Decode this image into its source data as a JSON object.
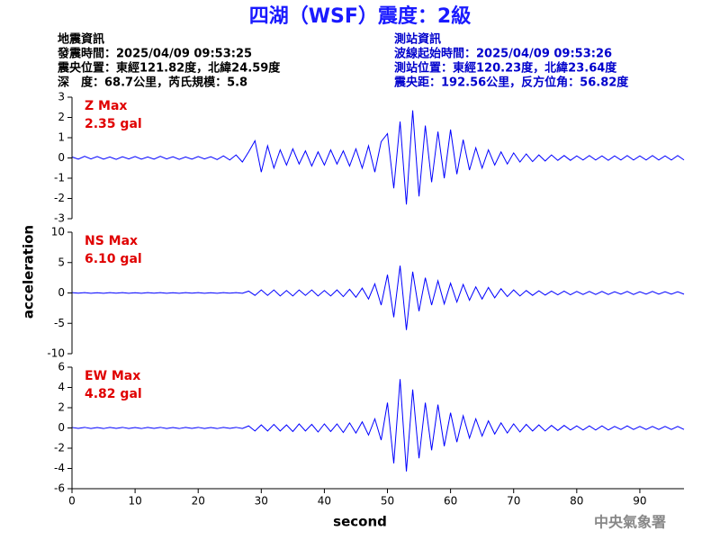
{
  "header": {
    "title": "四湖（WSF）震度：2級",
    "left": [
      "地震資訊",
      "發震時間：2025/04/09 09:53:25",
      "震央位置：東經121.82度，北緯24.59度",
      "深　度：68.7公里，芮氏規模：5.8"
    ],
    "right": [
      "測站資訊",
      "波線起始時間：2025/04/09 09:53:26",
      "測站位置：東經120.23度，北緯23.64度",
      "震央距：192.56公里，反方位角：56.82度"
    ],
    "footer": "中央氣象署"
  },
  "chart_data": {
    "type": "line",
    "xlabel": "second",
    "ylabel": "acceleration",
    "xlim": [
      0,
      97
    ],
    "xticks": [
      0,
      10,
      20,
      30,
      40,
      50,
      60,
      70,
      80,
      90
    ],
    "x": [
      0,
      1,
      2,
      3,
      4,
      5,
      6,
      7,
      8,
      9,
      10,
      11,
      12,
      13,
      14,
      15,
      16,
      17,
      18,
      19,
      20,
      21,
      22,
      23,
      24,
      25,
      26,
      27,
      28,
      29,
      30,
      31,
      32,
      33,
      34,
      35,
      36,
      37,
      38,
      39,
      40,
      41,
      42,
      43,
      44,
      45,
      46,
      47,
      48,
      49,
      50,
      51,
      52,
      53,
      54,
      55,
      56,
      57,
      58,
      59,
      60,
      61,
      62,
      63,
      64,
      65,
      66,
      67,
      68,
      69,
      70,
      71,
      72,
      73,
      74,
      75,
      76,
      77,
      78,
      79,
      80,
      81,
      82,
      83,
      84,
      85,
      86,
      87,
      88,
      89,
      90,
      91,
      92,
      93,
      94,
      95,
      96,
      97
    ],
    "panels": [
      {
        "annotation": [
          "Z Max",
          "2.35 gal"
        ],
        "ylim": [
          -3,
          3
        ],
        "yticks": [
          -3,
          -2,
          -1,
          0,
          1,
          2,
          3
        ],
        "series": [
          {
            "color": "#0000ff",
            "values": [
              0.05,
              -0.06,
              0.08,
              -0.05,
              0.07,
              -0.06,
              0.05,
              -0.07,
              0.06,
              -0.05,
              0.07,
              -0.06,
              0.05,
              -0.06,
              0.08,
              -0.05,
              0.06,
              -0.07,
              0.05,
              -0.06,
              0.07,
              -0.05,
              0.06,
              -0.08,
              0.1,
              -0.1,
              0.15,
              -0.2,
              0.3,
              0.85,
              -0.7,
              0.6,
              -0.5,
              0.4,
              -0.35,
              0.45,
              -0.3,
              0.35,
              -0.4,
              0.3,
              -0.35,
              0.4,
              -0.3,
              0.35,
              -0.4,
              0.45,
              -0.5,
              0.6,
              -0.7,
              0.8,
              1.2,
              -1.5,
              1.8,
              -2.3,
              2.35,
              -1.9,
              1.6,
              -1.2,
              1.3,
              -1.0,
              1.4,
              -0.8,
              0.9,
              -0.6,
              0.5,
              -0.5,
              0.4,
              -0.35,
              0.3,
              -0.3,
              0.25,
              -0.2,
              0.2,
              -0.18,
              0.15,
              -0.15,
              0.15,
              -0.12,
              0.12,
              -0.12,
              0.1,
              -0.1,
              0.12,
              -0.1,
              0.1,
              -0.12,
              0.1,
              -0.1,
              0.12,
              -0.1,
              0.1,
              -0.1,
              0.12,
              -0.1,
              0.1,
              -0.1,
              0.12,
              -0.1
            ]
          }
        ]
      },
      {
        "annotation": [
          "NS Max",
          "6.10 gal"
        ],
        "ylim": [
          -10,
          10
        ],
        "yticks": [
          -10,
          -5,
          0,
          5,
          10
        ],
        "series": [
          {
            "color": "#0000ff",
            "values": [
              0.05,
              -0.04,
              0.06,
              -0.05,
              0.04,
              -0.06,
              0.05,
              -0.04,
              0.06,
              -0.05,
              0.04,
              -0.06,
              0.05,
              -0.04,
              0.06,
              -0.05,
              0.04,
              -0.06,
              0.05,
              -0.04,
              0.06,
              -0.05,
              0.04,
              -0.06,
              0.05,
              -0.04,
              0.06,
              -0.05,
              0.3,
              -0.4,
              0.5,
              -0.4,
              0.5,
              -0.5,
              0.4,
              -0.5,
              0.5,
              -0.4,
              0.5,
              -0.5,
              0.4,
              -0.5,
              0.5,
              -0.6,
              0.6,
              -0.7,
              0.8,
              -1.0,
              1.5,
              -2.0,
              3.0,
              -4.0,
              4.5,
              -6.1,
              3.5,
              -3.0,
              2.5,
              -2.0,
              2.0,
              -1.8,
              1.6,
              -1.5,
              1.4,
              -1.2,
              1.0,
              -1.0,
              0.9,
              -0.8,
              0.7,
              -0.6,
              0.5,
              -0.5,
              0.4,
              -0.4,
              0.35,
              -0.35,
              0.3,
              -0.3,
              0.3,
              -0.3,
              0.25,
              -0.25,
              0.25,
              -0.25,
              0.25,
              -0.25,
              0.2,
              -0.2,
              0.25,
              -0.25,
              0.2,
              -0.2,
              0.25,
              -0.2,
              0.2,
              -0.2,
              0.2,
              -0.2
            ]
          }
        ]
      },
      {
        "annotation": [
          "EW Max",
          "4.82 gal"
        ],
        "ylim": [
          -6,
          6
        ],
        "yticks": [
          -6,
          -4,
          -2,
          0,
          2,
          4,
          6
        ],
        "series": [
          {
            "color": "#0000ff",
            "values": [
              0.05,
              -0.04,
              0.06,
              -0.05,
              0.04,
              -0.06,
              0.05,
              -0.04,
              0.06,
              -0.05,
              0.04,
              -0.06,
              0.05,
              -0.04,
              0.06,
              -0.05,
              0.04,
              -0.06,
              0.05,
              -0.04,
              0.06,
              -0.05,
              0.04,
              -0.06,
              0.05,
              -0.04,
              0.06,
              -0.05,
              0.2,
              -0.3,
              0.3,
              -0.3,
              0.35,
              -0.3,
              0.3,
              -0.35,
              0.4,
              -0.3,
              0.35,
              -0.4,
              0.4,
              -0.35,
              0.4,
              -0.45,
              0.5,
              -0.5,
              0.6,
              -0.7,
              0.9,
              -1.2,
              2.5,
              -3.5,
              4.82,
              -4.3,
              3.8,
              -3.0,
              2.5,
              -2.2,
              2.3,
              -1.8,
              1.5,
              -1.4,
              1.2,
              -1.0,
              0.9,
              -0.8,
              0.7,
              -0.6,
              0.5,
              -0.5,
              0.4,
              -0.4,
              0.35,
              -0.3,
              0.3,
              -0.3,
              0.25,
              -0.25,
              0.25,
              -0.2,
              0.2,
              -0.2,
              0.2,
              -0.2,
              0.2,
              -0.2,
              0.15,
              -0.15,
              0.2,
              -0.15,
              0.15,
              -0.15,
              0.15,
              -0.15,
              0.15,
              -0.15,
              0.15,
              -0.15
            ]
          }
        ]
      }
    ]
  }
}
